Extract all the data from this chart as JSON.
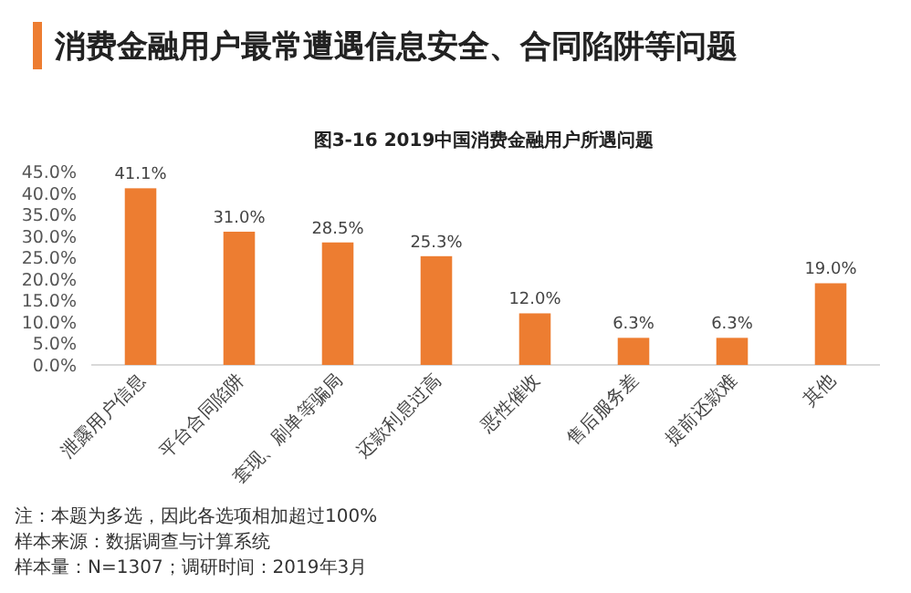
{
  "chart_data": {
    "type": "bar",
    "title": "消费金融用户最常遭遇信息安全、合同陷阱等问题",
    "subtitle": "图3-16 2019中国消费金融用户所遇问题",
    "categories": [
      "泄露用户信息",
      "平台合同陷阱",
      "套现、刷单等骗局",
      "还款利息过高",
      "恶性催收",
      "售后服务差",
      "提前还款难",
      "其他"
    ],
    "values": [
      41.1,
      31.0,
      28.5,
      25.3,
      12.0,
      6.3,
      6.3,
      19.0
    ],
    "value_labels": [
      "41.1%",
      "31.0%",
      "28.5%",
      "25.3%",
      "12.0%",
      "6.3%",
      "6.3%",
      "19.0%"
    ],
    "color": "#ed7d31",
    "ylim": [
      0,
      45
    ],
    "yticks": [
      {
        "value": 0,
        "label": "0.0%"
      },
      {
        "value": 5,
        "label": "5.0%"
      },
      {
        "value": 10,
        "label": "10.0%"
      },
      {
        "value": 15,
        "label": "15.0%"
      },
      {
        "value": 20,
        "label": "20.0%"
      },
      {
        "value": 25,
        "label": "25.0%"
      },
      {
        "value": 30,
        "label": "30.0%"
      },
      {
        "value": 35,
        "label": "35.0%"
      },
      {
        "value": 40,
        "label": "40.0%"
      },
      {
        "value": 45,
        "label": "45.0%"
      }
    ],
    "grid": false,
    "annotations": [
      "注：本题为多选，因此各选项相加超过100%",
      "样本来源：数据调查与计算系统",
      "样本量：N=1307；调研时间：2019年3月"
    ]
  }
}
